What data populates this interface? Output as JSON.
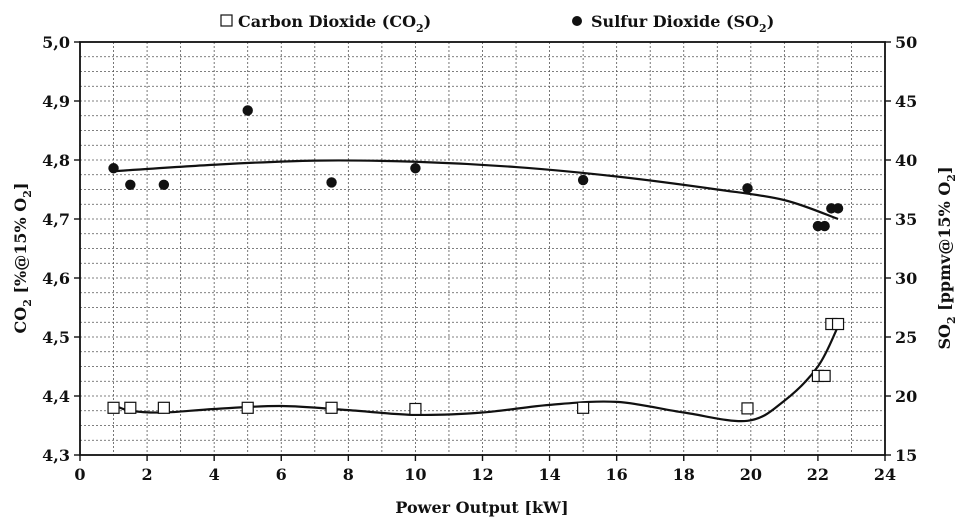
{
  "chart_data": {
    "type": "scatter",
    "xlabel": "Power Output [kW]",
    "ylabel_left": "CO",
    "ylabel_left_sub": "2",
    "ylabel_left_rest": " [%@15% O",
    "ylabel_left_sub2": "2",
    "ylabel_left_end": "]",
    "ylabel_right": "SO",
    "ylabel_right_sub": "2",
    "ylabel_right_rest": " [ppmv@15% O",
    "ylabel_right_sub2": "2",
    "ylabel_right_end": "]",
    "xlim": [
      0,
      24
    ],
    "ylim_left": [
      4.3,
      5.0
    ],
    "ylim_right": [
      15,
      50
    ],
    "x_ticks": [
      "0",
      "2",
      "4",
      "6",
      "8",
      "10",
      "12",
      "14",
      "16",
      "18",
      "20",
      "22",
      "24"
    ],
    "y_left_ticks": [
      "4,3",
      "4,4",
      "4,5",
      "4,6",
      "4,7",
      "4,8",
      "4,9",
      "5,0"
    ],
    "y_right_ticks": [
      "15",
      "20",
      "25",
      "30",
      "35",
      "40",
      "45",
      "50"
    ],
    "grid": true,
    "legend_position": "top",
    "series": [
      {
        "name": "Carbon Dioxide (CO",
        "name_sub": "2",
        "name_end": ")",
        "marker": "open-square",
        "axis": "left",
        "points": [
          [
            1.0,
            4.38
          ],
          [
            1.5,
            4.38
          ],
          [
            2.5,
            4.38
          ],
          [
            5.0,
            4.38
          ],
          [
            7.5,
            4.38
          ],
          [
            10.0,
            4.378
          ],
          [
            15.0,
            4.38
          ],
          [
            19.9,
            4.379
          ],
          [
            22.0,
            4.434
          ],
          [
            22.2,
            4.434
          ],
          [
            22.4,
            4.522
          ],
          [
            22.6,
            4.522
          ]
        ],
        "fit": [
          [
            1.0,
            4.385
          ],
          [
            1.5,
            4.375
          ],
          [
            2.5,
            4.372
          ],
          [
            4,
            4.378
          ],
          [
            6,
            4.383
          ],
          [
            8,
            4.376
          ],
          [
            10,
            4.368
          ],
          [
            12,
            4.372
          ],
          [
            14,
            4.385
          ],
          [
            16,
            4.39
          ],
          [
            18,
            4.372
          ],
          [
            19.9,
            4.358
          ],
          [
            21,
            4.392
          ],
          [
            22,
            4.45
          ],
          [
            22.6,
            4.518
          ]
        ]
      },
      {
        "name": "Sulfur Dioxide (SO",
        "name_sub": "2",
        "name_end": ")",
        "marker": "filled-circle",
        "axis": "right",
        "points": [
          [
            1.0,
            39.3
          ],
          [
            1.5,
            37.9
          ],
          [
            2.5,
            37.9
          ],
          [
            5.0,
            44.2
          ],
          [
            7.5,
            38.1
          ],
          [
            10.0,
            39.3
          ],
          [
            15.0,
            38.3
          ],
          [
            19.9,
            37.6
          ],
          [
            22.0,
            34.4
          ],
          [
            22.2,
            34.4
          ],
          [
            22.4,
            35.9
          ],
          [
            22.6,
            35.9
          ]
        ],
        "fit": [
          [
            1.0,
            39.05
          ],
          [
            4,
            39.6
          ],
          [
            7,
            39.95
          ],
          [
            10,
            39.85
          ],
          [
            13,
            39.4
          ],
          [
            16,
            38.6
          ],
          [
            19,
            37.5
          ],
          [
            21,
            36.6
          ],
          [
            22.6,
            35.0
          ]
        ]
      }
    ]
  }
}
